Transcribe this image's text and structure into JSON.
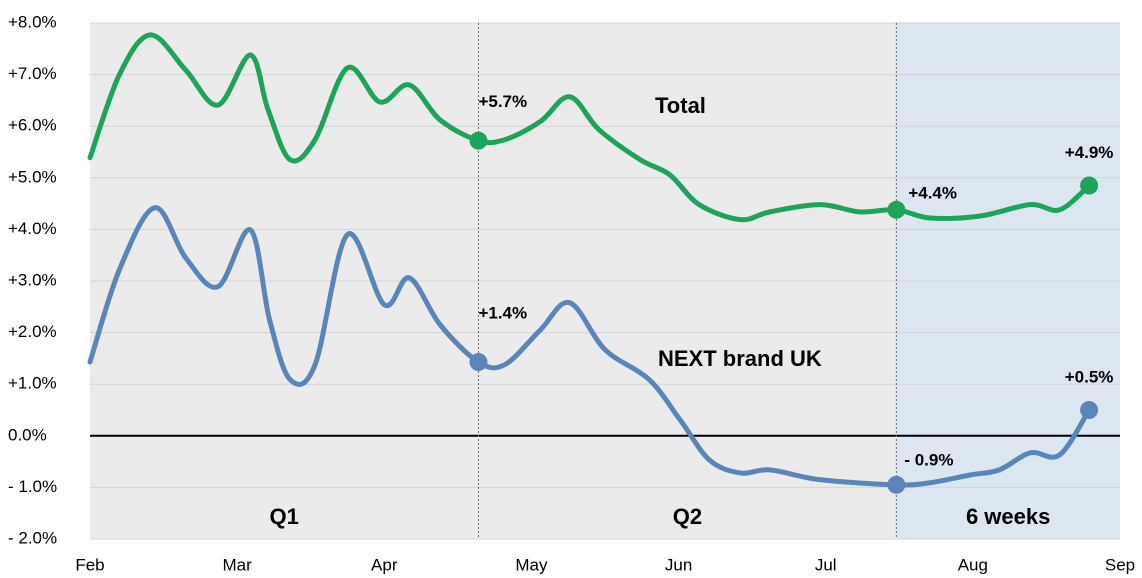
{
  "chart_data": {
    "type": "line",
    "xlim": [
      0,
      7
    ],
    "xticks": [
      {
        "value": 0,
        "label": "Feb"
      },
      {
        "value": 1,
        "label": "Mar"
      },
      {
        "value": 2,
        "label": "Apr"
      },
      {
        "value": 3,
        "label": "May"
      },
      {
        "value": 4,
        "label": "Jun"
      },
      {
        "value": 5,
        "label": "Jul"
      },
      {
        "value": 6,
        "label": "Aug"
      },
      {
        "value": 7,
        "label": "Sep"
      }
    ],
    "ylim": [
      -2,
      8
    ],
    "yticks": [
      {
        "value": -2,
        "label": "- 2.0%"
      },
      {
        "value": -1,
        "label": "- 1.0%"
      },
      {
        "value": 0,
        "label": "0.0%"
      },
      {
        "value": 1,
        "label": "+1.0%"
      },
      {
        "value": 2,
        "label": "+2.0%"
      },
      {
        "value": 3,
        "label": "+3.0%"
      },
      {
        "value": 4,
        "label": "+4.0%"
      },
      {
        "value": 5,
        "label": "+5.0%"
      },
      {
        "value": 6,
        "label": "+6.0%"
      },
      {
        "value": 7,
        "label": "+7.0%"
      },
      {
        "value": 8,
        "label": "+8.0%"
      }
    ],
    "grid": true,
    "regions": [
      {
        "label": "Q1",
        "x": [
          0,
          2.64
        ],
        "color": "#ebebeb"
      },
      {
        "label": "Q2",
        "x": [
          2.64,
          5.48
        ],
        "color": "#ebebeb"
      },
      {
        "label": "6 weeks",
        "x": [
          5.48,
          7
        ],
        "color": "#dce6f1"
      }
    ],
    "series": [
      {
        "name": "Total",
        "color": "#1ea35a",
        "x": [
          0,
          0.2,
          0.41,
          0.65,
          0.87,
          1.09,
          1.21,
          1.36,
          1.53,
          1.75,
          1.97,
          2.17,
          2.38,
          2.64,
          2.82,
          3.06,
          3.26,
          3.46,
          3.74,
          3.94,
          4.14,
          4.42,
          4.62,
          4.96,
          5.23,
          5.48,
          5.71,
          6.05,
          6.39,
          6.59,
          6.79
        ],
        "values": [
          5.39,
          7.0,
          7.77,
          7.09,
          6.41,
          7.38,
          6.32,
          5.35,
          5.74,
          7.13,
          6.47,
          6.8,
          6.12,
          5.72,
          5.74,
          6.09,
          6.57,
          5.93,
          5.35,
          5.06,
          4.48,
          4.19,
          4.34,
          4.48,
          4.34,
          4.38,
          4.22,
          4.26,
          4.48,
          4.38,
          4.85
        ]
      },
      {
        "name": "NEXT brand UK",
        "color": "#5a85b9",
        "x": [
          0,
          0.2,
          0.44,
          0.65,
          0.87,
          1.09,
          1.22,
          1.36,
          1.53,
          1.75,
          2.0,
          2.17,
          2.38,
          2.64,
          2.82,
          3.06,
          3.26,
          3.5,
          3.8,
          4.01,
          4.21,
          4.42,
          4.62,
          4.96,
          5.48,
          5.71,
          5.98,
          6.18,
          6.39,
          6.59,
          6.79
        ],
        "values": [
          1.43,
          3.22,
          4.42,
          3.45,
          2.89,
          3.99,
          2.25,
          1.09,
          1.38,
          3.9,
          2.54,
          3.06,
          2.15,
          1.43,
          1.38,
          2.05,
          2.58,
          1.67,
          1.09,
          0.31,
          -0.47,
          -0.72,
          -0.66,
          -0.85,
          -0.95,
          -0.91,
          -0.76,
          -0.66,
          -0.33,
          -0.37,
          0.5
        ]
      }
    ],
    "annotations": [
      {
        "x": 2.64,
        "y": 5.72,
        "label": "+5.7%",
        "series": 0
      },
      {
        "x": 5.48,
        "y": 4.38,
        "label": "+4.4%",
        "series": 0
      },
      {
        "x": 6.79,
        "y": 4.85,
        "label": "+4.9%",
        "series": 0
      },
      {
        "x": 2.64,
        "y": 1.43,
        "label": "+1.4%",
        "series": 1
      },
      {
        "x": 5.48,
        "y": -0.95,
        "label": "- 0.9%",
        "series": 1
      },
      {
        "x": 6.79,
        "y": 0.5,
        "label": "+0.5%",
        "series": 1
      }
    ]
  }
}
